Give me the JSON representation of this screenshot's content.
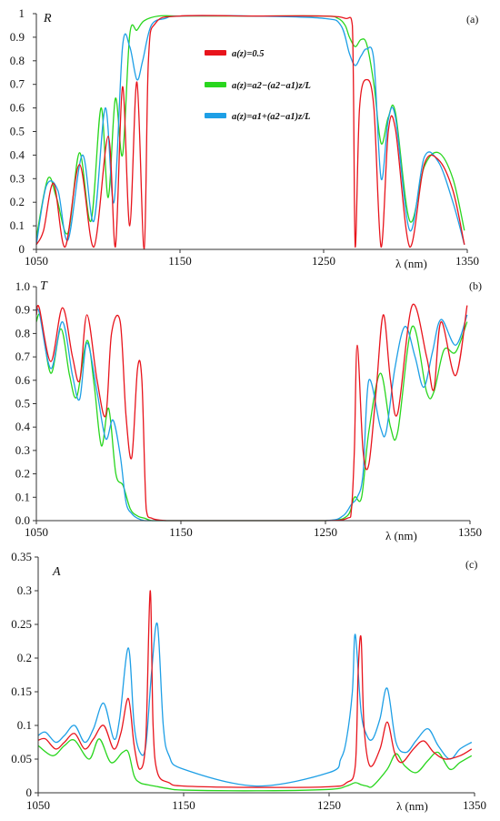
{
  "chart_data": [
    {
      "type": "line",
      "panel_label": "(a)",
      "ylabel": "R",
      "xlabel": "λ (nm)",
      "xlim": [
        1050,
        1350
      ],
      "ylim": [
        0,
        1
      ],
      "xticks": [
        1050,
        1150,
        1250,
        1350
      ],
      "yticks": [
        0,
        0.1,
        0.2,
        0.3,
        0.4,
        0.5,
        0.6,
        0.7,
        0.8,
        0.9,
        1
      ],
      "ytick_labels": [
        "0",
        "0.1",
        "0.2",
        "0.3",
        "0.4",
        "0.5",
        "0.6",
        "0.7",
        "0.8",
        "0.9",
        "1"
      ],
      "grid": false,
      "legend": [
        "a(z)=0.5",
        "a(z)=a2−(a2−a1)z/L",
        "a(z)=a1+(a2−a1)z/L"
      ],
      "series": [
        {
          "name": "a(z)=0.5",
          "color": "#e8141c",
          "x": [
            1050,
            1055,
            1062,
            1070,
            1080,
            1090,
            1100,
            1105,
            1110,
            1115,
            1120,
            1125,
            1128,
            1133,
            1150,
            1200,
            1250,
            1265,
            1270,
            1272,
            1275,
            1280,
            1285,
            1290,
            1295,
            1300,
            1310,
            1320,
            1330,
            1340,
            1348
          ],
          "y": [
            0.02,
            0.08,
            0.28,
            0.01,
            0.36,
            0.01,
            0.48,
            0.01,
            0.69,
            0.1,
            0.71,
            0.0,
            0.8,
            0.96,
            0.99,
            0.99,
            0.99,
            0.98,
            0.95,
            0.01,
            0.6,
            0.72,
            0.6,
            0.01,
            0.5,
            0.51,
            0.01,
            0.36,
            0.38,
            0.25,
            0.02
          ]
        },
        {
          "name": "a(z)=a2−(a2−a1)z/L",
          "color": "#29d61e",
          "x": [
            1050,
            1058,
            1064,
            1072,
            1080,
            1088,
            1095,
            1100,
            1105,
            1110,
            1115,
            1120,
            1125,
            1135,
            1150,
            1200,
            1250,
            1260,
            1265,
            1268,
            1272,
            1276,
            1280,
            1285,
            1290,
            1295,
            1300,
            1310,
            1320,
            1330,
            1340,
            1348
          ],
          "y": [
            0.05,
            0.3,
            0.22,
            0.07,
            0.41,
            0.12,
            0.6,
            0.22,
            0.64,
            0.4,
            0.91,
            0.93,
            0.97,
            0.99,
            0.99,
            0.99,
            0.99,
            0.98,
            0.95,
            0.9,
            0.86,
            0.89,
            0.87,
            0.7,
            0.45,
            0.56,
            0.58,
            0.12,
            0.35,
            0.41,
            0.3,
            0.08
          ]
        },
        {
          "name": "a(z)=a1+(a2−a1)z/L",
          "color": "#1e9fe6",
          "x": [
            1050,
            1057,
            1065,
            1072,
            1082,
            1090,
            1098,
            1104,
            1110,
            1115,
            1120,
            1124,
            1130,
            1140,
            1150,
            1200,
            1250,
            1262,
            1268,
            1272,
            1276,
            1280,
            1285,
            1290,
            1295,
            1300,
            1310,
            1320,
            1330,
            1340,
            1348
          ],
          "y": [
            0.02,
            0.27,
            0.25,
            0.04,
            0.4,
            0.12,
            0.6,
            0.2,
            0.86,
            0.86,
            0.72,
            0.8,
            0.95,
            0.98,
            0.99,
            0.99,
            0.98,
            0.95,
            0.83,
            0.78,
            0.82,
            0.85,
            0.8,
            0.3,
            0.55,
            0.56,
            0.08,
            0.39,
            0.37,
            0.2,
            0.02
          ]
        }
      ]
    },
    {
      "type": "line",
      "panel_label": "(b)",
      "ylabel": "T",
      "xlabel": "λ (nm)",
      "xlim": [
        1050,
        1350
      ],
      "ylim": [
        0,
        1
      ],
      "xticks": [
        1050,
        1150,
        1250,
        1350
      ],
      "yticks": [
        0,
        0.1,
        0.2,
        0.3,
        0.4,
        0.5,
        0.6,
        0.7,
        0.8,
        0.9,
        1
      ],
      "ytick_labels": [
        "0.0",
        "0.1",
        "0.2",
        "0.3",
        "0.4",
        "0.5",
        "0.6",
        "0.7",
        "0.8",
        "0.9",
        "1.0"
      ],
      "grid": false,
      "series": [
        {
          "name": "a(z)=0.5",
          "color": "#e8141c",
          "x": [
            1050,
            1052,
            1060,
            1068,
            1075,
            1080,
            1085,
            1092,
            1098,
            1102,
            1108,
            1112,
            1116,
            1120,
            1123,
            1126,
            1130,
            1140,
            1150,
            1200,
            1250,
            1265,
            1268,
            1270,
            1272,
            1276,
            1280,
            1285,
            1290,
            1295,
            1300,
            1310,
            1320,
            1325,
            1330,
            1340,
            1348
          ],
          "y": [
            0.88,
            0.91,
            0.68,
            0.91,
            0.7,
            0.6,
            0.88,
            0.6,
            0.45,
            0.8,
            0.85,
            0.45,
            0.27,
            0.65,
            0.6,
            0.05,
            0.01,
            0.0,
            0.0,
            0.0,
            0.0,
            0.01,
            0.05,
            0.3,
            0.75,
            0.3,
            0.24,
            0.55,
            0.88,
            0.6,
            0.46,
            0.92,
            0.7,
            0.56,
            0.85,
            0.62,
            0.92
          ]
        },
        {
          "name": "a(z)=a2−(a2−a1)z/L",
          "color": "#29d61e",
          "x": [
            1050,
            1053,
            1060,
            1067,
            1073,
            1078,
            1085,
            1090,
            1095,
            1100,
            1105,
            1110,
            1115,
            1120,
            1125,
            1130,
            1140,
            1150,
            1200,
            1250,
            1265,
            1270,
            1275,
            1280,
            1288,
            1295,
            1300,
            1310,
            1320,
            1325,
            1332,
            1340,
            1348
          ],
          "y": [
            0.85,
            0.87,
            0.63,
            0.82,
            0.62,
            0.53,
            0.77,
            0.58,
            0.32,
            0.48,
            0.2,
            0.15,
            0.05,
            0.02,
            0.01,
            0.0,
            0.0,
            0.0,
            0.0,
            0.0,
            0.02,
            0.1,
            0.1,
            0.38,
            0.63,
            0.4,
            0.38,
            0.83,
            0.55,
            0.55,
            0.73,
            0.72,
            0.85
          ]
        },
        {
          "name": "a(z)=a1+(a2−a1)z/L",
          "color": "#1e9fe6",
          "x": [
            1050,
            1052,
            1060,
            1068,
            1075,
            1080,
            1085,
            1092,
            1098,
            1103,
            1108,
            1112,
            1116,
            1120,
            1125,
            1130,
            1140,
            1150,
            1200,
            1250,
            1262,
            1268,
            1272,
            1276,
            1280,
            1288,
            1292,
            1298,
            1305,
            1312,
            1318,
            1324,
            1330,
            1340,
            1348
          ],
          "y": [
            0.88,
            0.89,
            0.65,
            0.85,
            0.62,
            0.52,
            0.76,
            0.55,
            0.35,
            0.43,
            0.28,
            0.08,
            0.03,
            0.01,
            0.0,
            0.0,
            0.0,
            0.0,
            0.0,
            0.0,
            0.02,
            0.07,
            0.1,
            0.2,
            0.6,
            0.4,
            0.38,
            0.65,
            0.83,
            0.7,
            0.57,
            0.72,
            0.86,
            0.75,
            0.88
          ]
        }
      ]
    },
    {
      "type": "line",
      "panel_label": "(c)",
      "ylabel": "A",
      "xlabel": "λ (nm)",
      "xlim": [
        1050,
        1350
      ],
      "ylim": [
        0,
        0.35
      ],
      "xticks": [
        1050,
        1150,
        1250,
        1350
      ],
      "yticks": [
        0,
        0.05,
        0.1,
        0.15,
        0.2,
        0.25,
        0.3,
        0.35
      ],
      "ytick_labels": [
        "0",
        "0.05",
        "0.1",
        "0.15",
        "0.2",
        "0.25",
        "0.3",
        "0.35"
      ],
      "grid": false,
      "series": [
        {
          "name": "a(z)=0.5",
          "color": "#e8141c",
          "x": [
            1050,
            1055,
            1062,
            1068,
            1075,
            1082,
            1088,
            1095,
            1102,
            1107,
            1112,
            1116,
            1120,
            1124,
            1127,
            1129,
            1132,
            1140,
            1150,
            1200,
            1250,
            1262,
            1268,
            1270,
            1272,
            1274,
            1278,
            1285,
            1290,
            1295,
            1300,
            1308,
            1315,
            1322,
            1330,
            1340,
            1348
          ],
          "y": [
            0.078,
            0.08,
            0.065,
            0.075,
            0.088,
            0.065,
            0.08,
            0.1,
            0.065,
            0.09,
            0.14,
            0.07,
            0.035,
            0.08,
            0.3,
            0.1,
            0.03,
            0.015,
            0.01,
            0.008,
            0.009,
            0.015,
            0.04,
            0.18,
            0.23,
            0.1,
            0.04,
            0.065,
            0.105,
            0.06,
            0.045,
            0.065,
            0.077,
            0.06,
            0.05,
            0.055,
            0.065
          ]
        },
        {
          "name": "a(z)=a2−(a2−a1)z/L",
          "color": "#29d61e",
          "x": [
            1050,
            1060,
            1068,
            1075,
            1085,
            1092,
            1100,
            1108,
            1112,
            1116,
            1120,
            1125,
            1130,
            1140,
            1150,
            1200,
            1250,
            1262,
            1268,
            1272,
            1276,
            1280,
            1290,
            1296,
            1302,
            1310,
            1318,
            1325,
            1333,
            1340,
            1348
          ],
          "y": [
            0.07,
            0.055,
            0.07,
            0.078,
            0.05,
            0.08,
            0.045,
            0.06,
            0.06,
            0.025,
            0.015,
            0.012,
            0.01,
            0.006,
            0.004,
            0.003,
            0.005,
            0.01,
            0.015,
            0.012,
            0.01,
            0.01,
            0.035,
            0.058,
            0.04,
            0.03,
            0.048,
            0.06,
            0.035,
            0.045,
            0.055
          ]
        },
        {
          "name": "a(z)=a1+(a2−a1)z/L",
          "color": "#1e9fe6",
          "x": [
            1050,
            1055,
            1062,
            1068,
            1075,
            1082,
            1088,
            1095,
            1102,
            1106,
            1112,
            1116,
            1120,
            1124,
            1128,
            1132,
            1136,
            1140,
            1150,
            1200,
            1250,
            1258,
            1262,
            1266,
            1268,
            1272,
            1276,
            1280,
            1285,
            1290,
            1296,
            1303,
            1310,
            1318,
            1325,
            1333,
            1340,
            1348
          ],
          "y": [
            0.085,
            0.09,
            0.075,
            0.085,
            0.1,
            0.075,
            0.095,
            0.133,
            0.08,
            0.11,
            0.215,
            0.1,
            0.06,
            0.07,
            0.18,
            0.25,
            0.1,
            0.055,
            0.035,
            0.01,
            0.03,
            0.05,
            0.08,
            0.15,
            0.235,
            0.12,
            0.085,
            0.08,
            0.11,
            0.155,
            0.075,
            0.06,
            0.078,
            0.095,
            0.07,
            0.05,
            0.065,
            0.075
          ]
        }
      ]
    }
  ]
}
